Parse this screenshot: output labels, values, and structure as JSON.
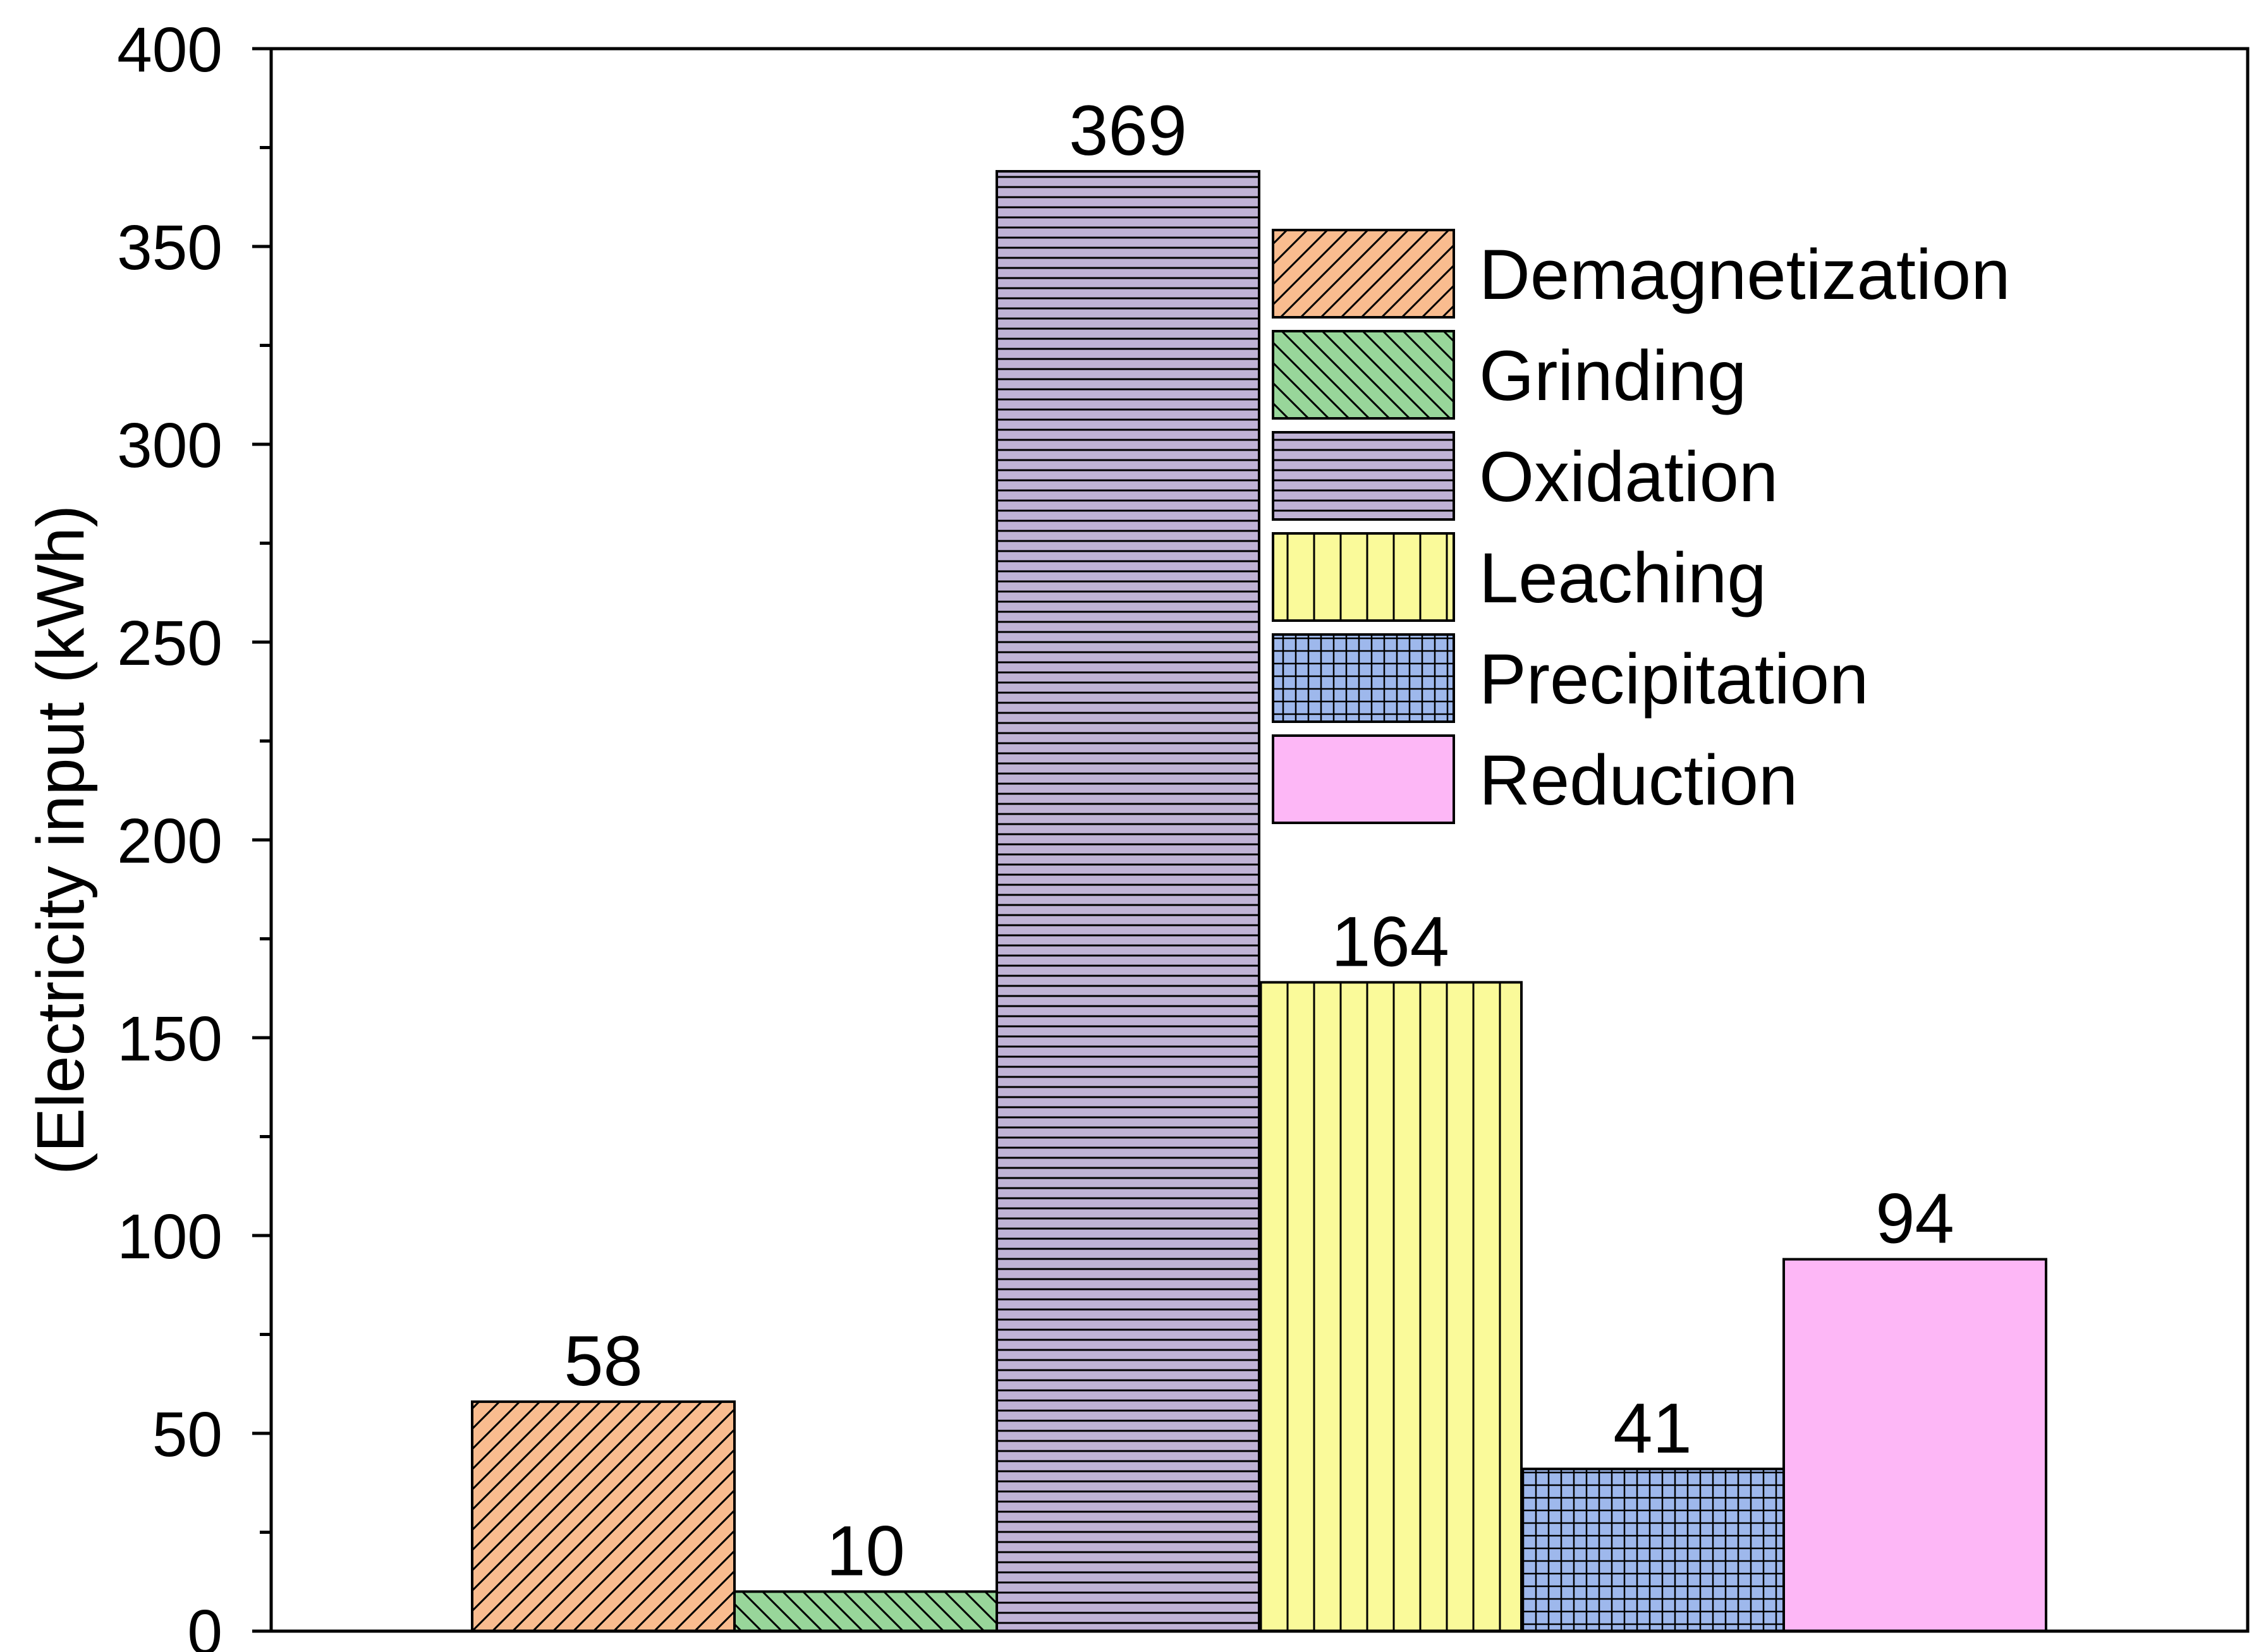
{
  "chart_data": {
    "type": "bar",
    "title": "",
    "xlabel": "",
    "ylabel": "(Electricity input (kWh)",
    "ylim": [
      0,
      400
    ],
    "yticks": [
      0,
      50,
      100,
      150,
      200,
      250,
      300,
      350,
      400
    ],
    "grid": false,
    "legend_position": "top-right",
    "series": [
      {
        "name": "Demagnetization",
        "value": 58,
        "label": "58",
        "color": "#f9bc8f",
        "pattern": "diagonal-right"
      },
      {
        "name": "Grinding",
        "value": 10,
        "label": "10",
        "color": "#98d69a",
        "pattern": "diagonal-left"
      },
      {
        "name": "Oxidation",
        "value": 369,
        "label": "369",
        "color": "#c0b3d6",
        "pattern": "horizontal"
      },
      {
        "name": "Leaching",
        "value": 164,
        "label": "164",
        "color": "#fafa9a",
        "pattern": "vertical"
      },
      {
        "name": "Precipitation",
        "value": 41,
        "label": "41",
        "color": "#9eb8ec",
        "pattern": "grid"
      },
      {
        "name": "Reduction",
        "value": 94,
        "label": "94",
        "color": "#fdb7f6",
        "pattern": "none"
      }
    ]
  }
}
